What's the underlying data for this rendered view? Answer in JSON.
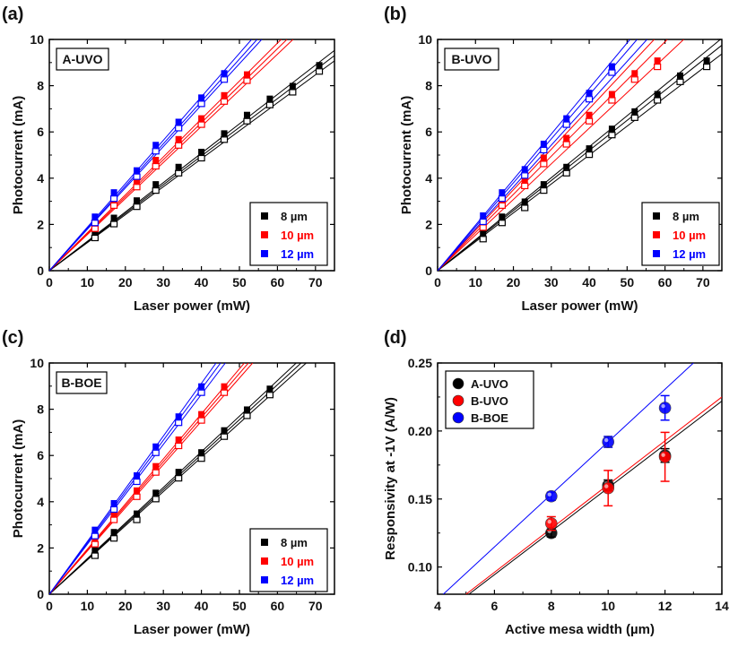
{
  "chart_data": [
    {
      "panel": "(a)",
      "title": "A-UVO",
      "type": "scatter",
      "xlabel": "Laser power (mW)",
      "ylabel": "Photocurrent (mA)",
      "xlim": [
        0,
        75
      ],
      "ylim": [
        0,
        10
      ],
      "xticks": [
        0,
        10,
        20,
        30,
        40,
        50,
        60,
        70
      ],
      "yticks": [
        0,
        2,
        4,
        6,
        8,
        10
      ],
      "legend_position": "bottom-right",
      "series": [
        {
          "name": "8 µm",
          "color": "#000000",
          "x": [
            12,
            17,
            23,
            28,
            34,
            40,
            46,
            52,
            58,
            64,
            71
          ],
          "y": [
            1.55,
            2.15,
            2.9,
            3.6,
            4.35,
            5.0,
            5.8,
            6.6,
            7.3,
            7.85,
            8.75
          ],
          "slopes": [
            0.121,
            0.124,
            0.127
          ]
        },
        {
          "name": "10 µm",
          "color": "#ff0000",
          "x": [
            12,
            17,
            23,
            28,
            34,
            40,
            46,
            52
          ],
          "y": [
            1.95,
            2.95,
            3.75,
            4.65,
            5.55,
            6.45,
            7.45,
            8.35
          ],
          "slopes": [
            0.156,
            0.16,
            0.164
          ]
        },
        {
          "name": "12 µm",
          "color": "#0000ff",
          "x": [
            12,
            17,
            23,
            28,
            34,
            40,
            46
          ],
          "y": [
            2.2,
            3.25,
            4.2,
            5.3,
            6.3,
            7.35,
            8.4
          ],
          "slopes": [
            0.179,
            0.183,
            0.188
          ]
        }
      ]
    },
    {
      "panel": "(b)",
      "title": "B-UVO",
      "type": "scatter",
      "xlabel": "Laser power (mW)",
      "ylabel": "Photocurrent (mA)",
      "xlim": [
        0,
        75
      ],
      "ylim": [
        0,
        10
      ],
      "xticks": [
        0,
        10,
        20,
        30,
        40,
        50,
        60,
        70
      ],
      "yticks": [
        0,
        2,
        4,
        6,
        8,
        10
      ],
      "legend_position": "bottom-right",
      "series": [
        {
          "name": "8 µm",
          "color": "#000000",
          "x": [
            12,
            17,
            23,
            28,
            34,
            40,
            46,
            52,
            58,
            64,
            71
          ],
          "y": [
            1.5,
            2.2,
            2.85,
            3.6,
            4.35,
            5.15,
            6.0,
            6.75,
            7.5,
            8.3,
            8.95
          ],
          "slopes": [
            0.125,
            0.13,
            0.134
          ]
        },
        {
          "name": "10 µm",
          "color": "#ff0000",
          "x": [
            12,
            17,
            23,
            28,
            34,
            40,
            46,
            52,
            58
          ],
          "y": [
            2.0,
            2.95,
            3.8,
            4.75,
            5.6,
            6.6,
            7.5,
            8.4,
            8.95
          ],
          "slopes": [
            0.154,
            0.165,
            0.175
          ]
        },
        {
          "name": "12 µm",
          "color": "#0000ff",
          "x": [
            12,
            17,
            23,
            28,
            34,
            40,
            46
          ],
          "y": [
            2.25,
            3.25,
            4.25,
            5.35,
            6.45,
            7.55,
            8.7
          ],
          "slopes": [
            0.181,
            0.19,
            0.197
          ]
        }
      ]
    },
    {
      "panel": "(c)",
      "title": "B-BOE",
      "type": "scatter",
      "xlabel": "Laser power (mW)",
      "ylabel": "Photocurrent (mA)",
      "xlim": [
        0,
        75
      ],
      "ylim": [
        0,
        10
      ],
      "xticks": [
        0,
        10,
        20,
        30,
        40,
        50,
        60,
        70
      ],
      "yticks": [
        0,
        2,
        4,
        6,
        8,
        10
      ],
      "legend_position": "bottom-right",
      "series": [
        {
          "name": "8 µm",
          "color": "#000000",
          "x": [
            12,
            17,
            23,
            28,
            34,
            40,
            46,
            52,
            58
          ],
          "y": [
            1.8,
            2.55,
            3.35,
            4.25,
            5.15,
            6.0,
            6.95,
            7.85,
            8.75
          ],
          "slopes": [
            0.148,
            0.151,
            0.154
          ]
        },
        {
          "name": "10 µm",
          "color": "#ff0000",
          "x": [
            12,
            17,
            23,
            28,
            34,
            40,
            46
          ],
          "y": [
            2.3,
            3.35,
            4.35,
            5.4,
            6.55,
            7.65,
            8.85
          ],
          "slopes": [
            0.187,
            0.191,
            0.195
          ]
        },
        {
          "name": "12 µm",
          "color": "#0000ff",
          "x": [
            12,
            17,
            23,
            28,
            34,
            40
          ],
          "y": [
            2.65,
            3.8,
            5.0,
            6.25,
            7.55,
            8.85
          ],
          "slopes": [
            0.216,
            0.222,
            0.228
          ]
        }
      ]
    },
    {
      "panel": "(d)",
      "type": "scatter",
      "xlabel": "Active mesa width (µm)",
      "ylabel": "Responsivity at -1V (A/W)",
      "xlim": [
        4,
        14
      ],
      "ylim": [
        0.08,
        0.25
      ],
      "xticks": [
        4,
        6,
        8,
        10,
        12,
        14
      ],
      "yticks": [
        0.1,
        0.15,
        0.2,
        0.25
      ],
      "legend_position": "top-left",
      "series": [
        {
          "name": "A-UVO",
          "color": "#000000",
          "x": [
            8,
            10,
            12
          ],
          "y": [
            0.125,
            0.16,
            0.182
          ],
          "err": [
            0.003,
            0.004,
            0.005
          ],
          "fit": [
            [
              5.1,
              0.08
            ],
            [
              14,
              0.222
            ]
          ]
        },
        {
          "name": "B-UVO",
          "color": "#ff0000",
          "x": [
            8,
            10,
            12
          ],
          "y": [
            0.132,
            0.158,
            0.181
          ],
          "err": [
            0.005,
            0.013,
            0.018
          ],
          "fit": [
            [
              5.0,
              0.08
            ],
            [
              14,
              0.225
            ]
          ]
        },
        {
          "name": "B-BOE",
          "color": "#0000ff",
          "x": [
            8,
            10,
            12
          ],
          "y": [
            0.152,
            0.192,
            0.217
          ],
          "err": [
            0.003,
            0.004,
            0.009
          ],
          "fit": [
            [
              4.2,
              0.08
            ],
            [
              13.0,
              0.25
            ]
          ]
        }
      ]
    }
  ]
}
